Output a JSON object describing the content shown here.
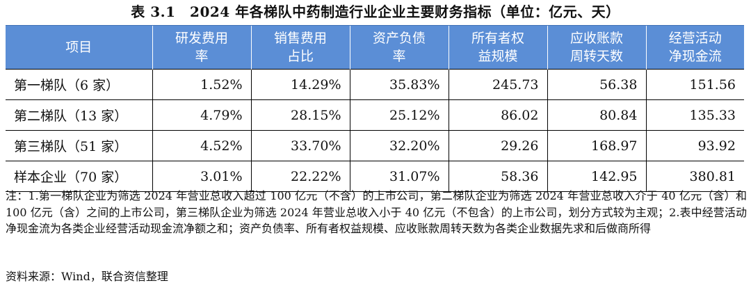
{
  "title": "表 3.1　2024 年各梯队中药制造行业企业主要财务指标（单位：亿元、天）",
  "table": {
    "headers": [
      [
        "项目"
      ],
      [
        "研发费用",
        "率"
      ],
      [
        "销售费用",
        "占比"
      ],
      [
        "资产负债",
        "率"
      ],
      [
        "所有者权",
        "益规模"
      ],
      [
        "应收账款",
        "周转天数"
      ],
      [
        "经营活动",
        "净现金流"
      ]
    ],
    "rows": [
      [
        "第一梯队（6 家）",
        "1.52%",
        "14.29%",
        "35.83%",
        "245.73",
        "56.38",
        "151.56"
      ],
      [
        "第二梯队（13 家）",
        "4.79%",
        "28.15%",
        "25.12%",
        "86.02",
        "80.84",
        "135.33"
      ],
      [
        "第三梯队（51 家）",
        "4.52%",
        "33.70%",
        "32.20%",
        "29.26",
        "168.97",
        "93.92"
      ],
      [
        "样本企业（70 家）",
        "3.01%",
        "22.22%",
        "31.07%",
        "58.36",
        "142.95",
        "380.81"
      ]
    ]
  },
  "note": "注：1.第一梯队企业为筛选 2024 年营业总收入超过 100 亿元（不含）的上市公司，第二梯队企业为筛选 2024 年营业总收入介于 40 亿元（含）和 100 亿元（含）之间的上市公司，第三梯队企业为筛选 2024 年营业总收入小于 40 亿元（不包含）的上市公司，划分方式较为主观；2.表中经营活动净现金流为各类企业经营活动现金流净额之和；资产负债率、所有者权益规模、应收账款周转天数为各类企业数据先求和后做商所得",
  "source": "资料来源：Wind，联合资信整理",
  "colors": {
    "header_bg": "#5b8ed6",
    "header_text": "#ffffff",
    "rule": "#000000"
  }
}
